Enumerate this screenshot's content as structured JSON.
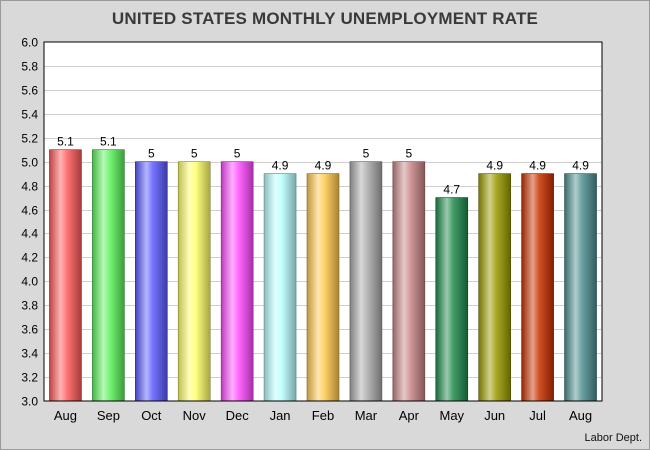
{
  "chart_data": {
    "type": "bar",
    "title": "UNITED STATES MONTHLY UNEMPLOYMENT RATE",
    "categories": [
      "Aug",
      "Sep",
      "Oct",
      "Nov",
      "Dec",
      "Jan",
      "Feb",
      "Mar",
      "Apr",
      "May",
      "Jun",
      "Jul",
      "Aug"
    ],
    "values": [
      5.1,
      5.1,
      5.0,
      5.0,
      5.0,
      4.9,
      4.9,
      5.0,
      5.0,
      4.7,
      4.9,
      4.9,
      4.9
    ],
    "data_labels": [
      "5.1",
      "5.1",
      "5",
      "5",
      "5",
      "4.9",
      "4.9",
      "5",
      "5",
      "4.7",
      "4.9",
      "4.9",
      "4.9"
    ],
    "yticks": [
      "3.0",
      "3.2",
      "3.4",
      "3.6",
      "3.8",
      "4.0",
      "4.2",
      "4.4",
      "4.6",
      "4.8",
      "5.0",
      "5.2",
      "5.4",
      "5.6",
      "5.8",
      "6.0"
    ],
    "ylim": [
      3.0,
      6.0
    ],
    "xlabel": "",
    "ylabel": "",
    "grid": true,
    "bar_colors": [
      "#ff5b5b",
      "#5cf25c",
      "#5b5bff",
      "#ffff6a",
      "#ff4cff",
      "#b8ffff",
      "#ffc94d",
      "#a9a9a9",
      "#c98686",
      "#1f8a4c",
      "#9a9a00",
      "#c83000",
      "#4f8f8f"
    ]
  },
  "source": "Labor Dept."
}
